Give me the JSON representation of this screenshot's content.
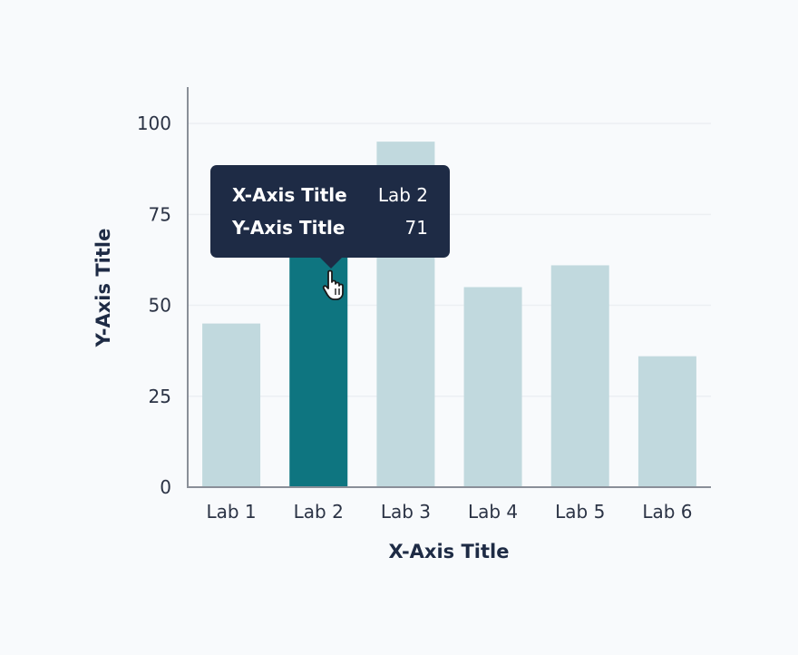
{
  "chart_data": {
    "type": "bar",
    "categories": [
      "Lab 1",
      "Lab 2",
      "Lab 3",
      "Lab 4",
      "Lab 5",
      "Lab 6"
    ],
    "values": [
      45,
      71,
      95,
      55,
      61,
      36
    ],
    "xlabel": "X-Axis Title",
    "ylabel": "Y-Axis Title",
    "ylim": [
      0,
      110
    ],
    "yticks": [
      0,
      25,
      50,
      75,
      100
    ],
    "highlighted_index": 1,
    "grid": true,
    "colors": {
      "bar": "#c1d9de",
      "highlight": "#0e7580"
    }
  },
  "tooltip": {
    "rows": [
      {
        "key": "X-Axis Title",
        "value": "Lab 2"
      },
      {
        "key": "Y-Axis Title",
        "value": "71"
      }
    ]
  },
  "cursor": {
    "icon": "hand-pointer-icon"
  }
}
